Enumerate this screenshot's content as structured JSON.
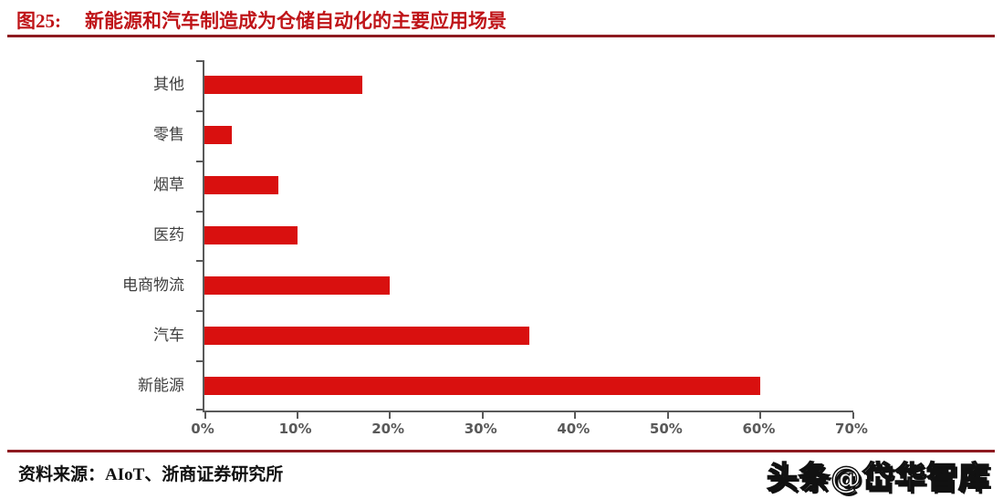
{
  "header": {
    "figure_label": "图25:",
    "title": "新能源和汽车制造成为仓储自动化的主要应用场景"
  },
  "footer": {
    "source": "资料来源：AIoT、浙商证券研究所",
    "watermark": "头条@岱华智库"
  },
  "colors": {
    "bar": "#d9100f",
    "title": "#bf1418",
    "rule": "#8e1a20",
    "axis": "#595959",
    "category_label": "#3f3f3f"
  },
  "chart_data": {
    "type": "bar",
    "orientation": "horizontal",
    "title": "新能源和汽车制造成为仓储自动化的主要应用场景",
    "categories": [
      "其他",
      "零售",
      "烟草",
      "医药",
      "电商物流",
      "汽车",
      "新能源"
    ],
    "values": [
      17,
      3,
      8,
      10,
      20,
      35,
      60
    ],
    "unit": "%",
    "xlabel": "",
    "ylabel": "",
    "xlim": [
      0,
      70
    ],
    "x_ticks": [
      "0%",
      "10%",
      "20%",
      "30%",
      "40%",
      "50%",
      "60%",
      "70%"
    ],
    "grid": false,
    "legend": false
  }
}
